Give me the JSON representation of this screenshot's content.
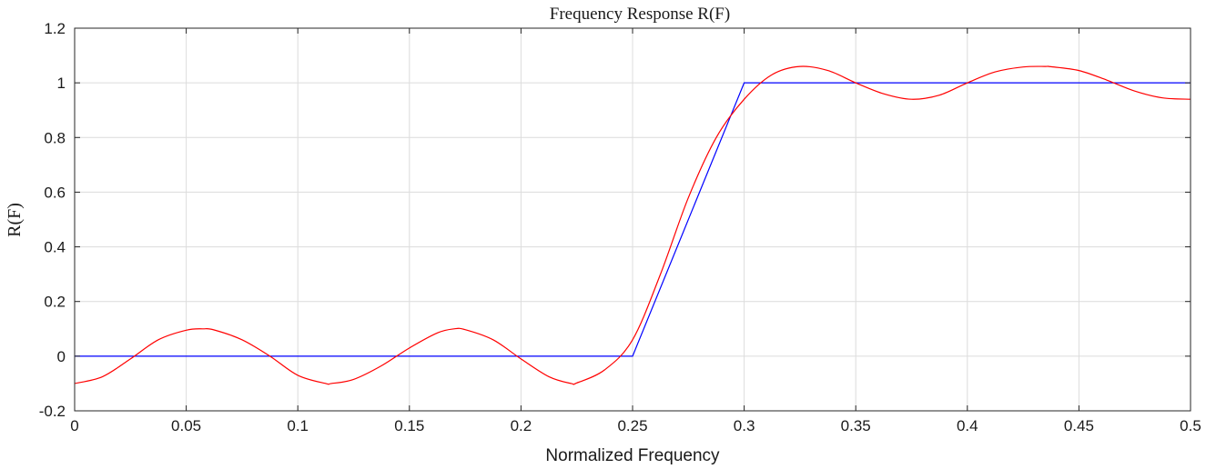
{
  "chart_data": {
    "type": "line",
    "title": "Frequency Response R(F)",
    "xlabel": "Normalized Frequency",
    "ylabel": "R(F)",
    "xlim": [
      0,
      0.5
    ],
    "ylim": [
      -0.2,
      1.2
    ],
    "grid": true,
    "xticks": [
      "0",
      "0.05",
      "0.1",
      "0.15",
      "0.2",
      "0.25",
      "0.3",
      "0.35",
      "0.4",
      "0.45",
      "0.5"
    ],
    "yticks": [
      "-0.2",
      "0",
      "0.2",
      "0.4",
      "0.6",
      "0.8",
      "1",
      "1.2"
    ],
    "series": [
      {
        "color": "#0000ff",
        "x": [
          0,
          0.25,
          0.3,
          0.5
        ],
        "y": [
          0,
          0,
          1,
          1
        ]
      },
      {
        "color": "#ff0000",
        "x": [
          0,
          0.0125,
          0.025,
          0.0375,
          0.05,
          0.0575,
          0.0625,
          0.075,
          0.0875,
          0.1,
          0.1125,
          0.115,
          0.125,
          0.1375,
          0.15,
          0.1625,
          0.17,
          0.175,
          0.1875,
          0.2,
          0.2125,
          0.2225,
          0.225,
          0.2375,
          0.25,
          0.2625,
          0.275,
          0.2875,
          0.3,
          0.3125,
          0.325,
          0.3375,
          0.35,
          0.3625,
          0.375,
          0.3875,
          0.4,
          0.4125,
          0.425,
          0.435,
          0.4375,
          0.45,
          0.4625,
          0.475,
          0.4875,
          0.5
        ],
        "y": [
          -0.1,
          -0.075,
          -0.01,
          0.06,
          0.095,
          0.1,
          0.096,
          0.06,
          0.0,
          -0.07,
          -0.1,
          -0.1,
          -0.085,
          -0.035,
          0.03,
          0.085,
          0.1,
          0.097,
          0.06,
          -0.01,
          -0.075,
          -0.1,
          -0.098,
          -0.05,
          0.06,
          0.3,
          0.58,
          0.8,
          0.94,
          1.03,
          1.06,
          1.045,
          1.0,
          0.96,
          0.94,
          0.955,
          1.0,
          1.04,
          1.058,
          1.06,
          1.059,
          1.045,
          1.01,
          0.97,
          0.945,
          0.94
        ]
      }
    ]
  }
}
